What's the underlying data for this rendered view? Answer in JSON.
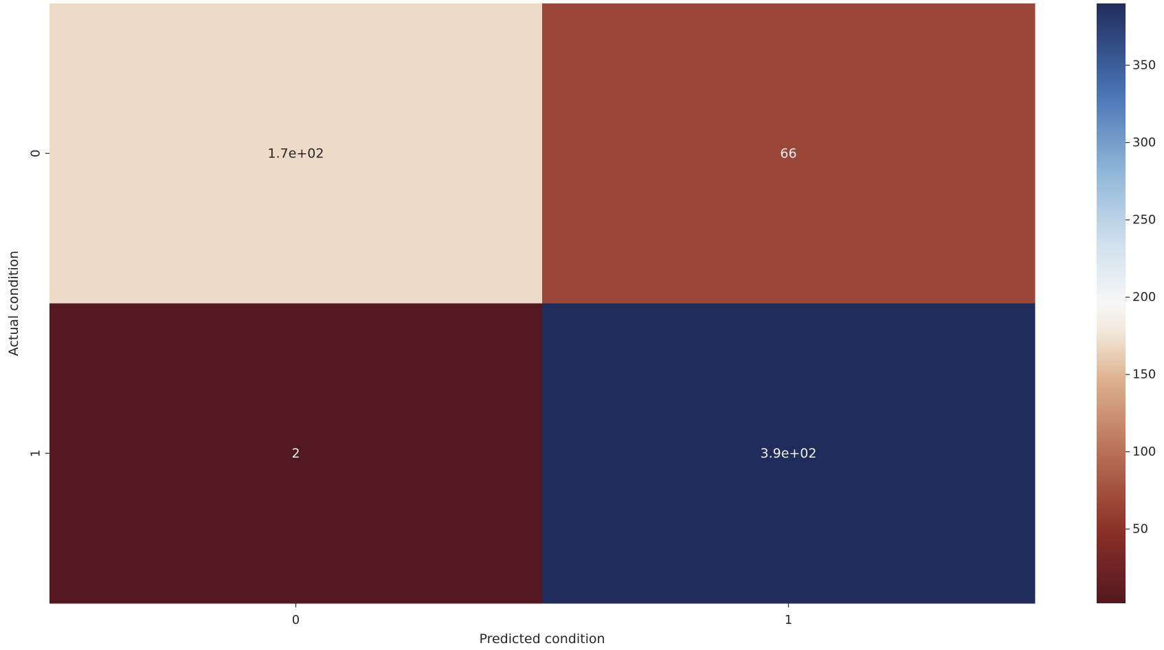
{
  "chart_data": {
    "type": "heatmap",
    "xlabel": "Predicted condition",
    "ylabel": "Actual condition",
    "x_categories": [
      "0",
      "1"
    ],
    "y_categories": [
      "0",
      "1"
    ],
    "values": [
      [
        170,
        66
      ],
      [
        2,
        390
      ]
    ],
    "annotations": [
      [
        "1.7e+02",
        "66"
      ],
      [
        "2",
        "3.9e+02"
      ]
    ],
    "colorbar": {
      "range": [
        2,
        390
      ],
      "ticks": [
        50,
        100,
        150,
        200,
        250,
        300,
        350
      ],
      "tick_labels": [
        "50",
        "100",
        "150",
        "200",
        "250",
        "300",
        "350"
      ]
    },
    "colors": {
      "scale": [
        "#541820",
        "#9e4a3a",
        "#cf9a78",
        "#f2e6d8",
        "#f7f7f7",
        "#a7c9e2",
        "#4a74b5",
        "#202c5c"
      ],
      "annotation_dark": "#262626",
      "annotation_light": "#f0f0f0"
    }
  }
}
